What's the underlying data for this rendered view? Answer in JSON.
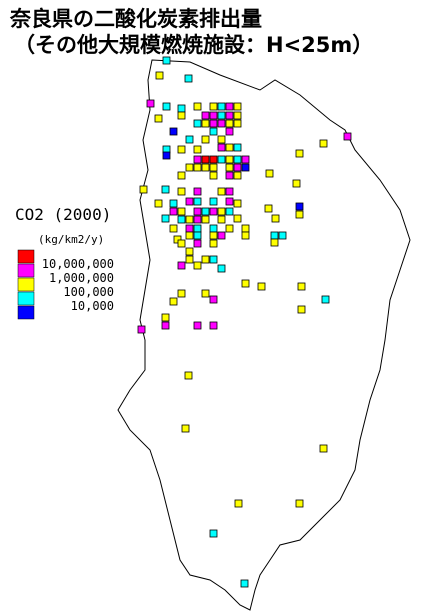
{
  "title": [
    "奈良県の二酸化炭素排出量",
    "（その他大規模燃焼施設：H<25m）"
  ],
  "legend": {
    "title": "CO2 (2000)",
    "unit": "(kg/km2/y)",
    "colors": [
      "#ff0000",
      "#ff00ff",
      "#ffff00",
      "#00ffff",
      "#0000ff"
    ],
    "labels": [
      "10,000,000",
      "1,000,000",
      "100,000",
      "10,000"
    ]
  }
}
